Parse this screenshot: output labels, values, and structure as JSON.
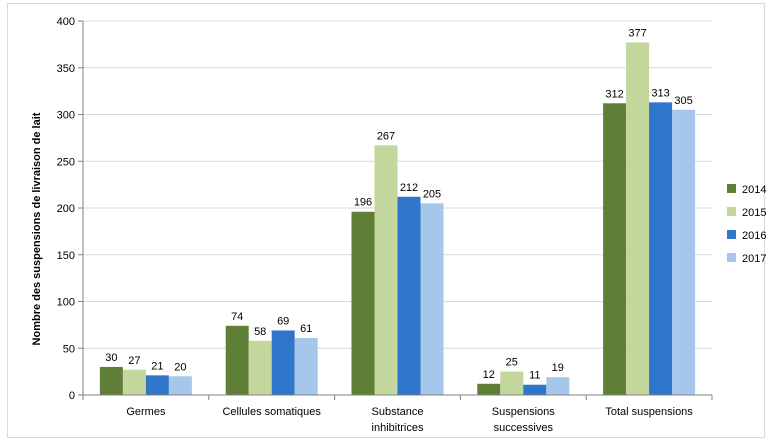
{
  "chart_data": {
    "type": "bar",
    "title": "",
    "xlabel": "",
    "ylabel": "Nombre des suspensions de livraison de lait",
    "ylim": [
      0,
      400
    ],
    "yticks": [
      0,
      50,
      100,
      150,
      200,
      250,
      300,
      350,
      400
    ],
    "grid": true,
    "legend_position": "right",
    "categories": [
      [
        "Germes"
      ],
      [
        "Cellules somatiques"
      ],
      [
        "Substance",
        "inhibitrices"
      ],
      [
        "Suspensions",
        "successives"
      ],
      [
        "Total suspensions"
      ]
    ],
    "series": [
      {
        "name": "2014",
        "color": "#5e7f35",
        "values": [
          30,
          74,
          196,
          12,
          312
        ]
      },
      {
        "name": "2015",
        "color": "#c3d69b",
        "values": [
          27,
          58,
          267,
          25,
          377
        ]
      },
      {
        "name": "2016",
        "color": "#2f75c9",
        "values": [
          21,
          69,
          212,
          11,
          313
        ]
      },
      {
        "name": "2017",
        "color": "#a6c6ec",
        "values": [
          20,
          61,
          205,
          19,
          305
        ]
      }
    ]
  }
}
